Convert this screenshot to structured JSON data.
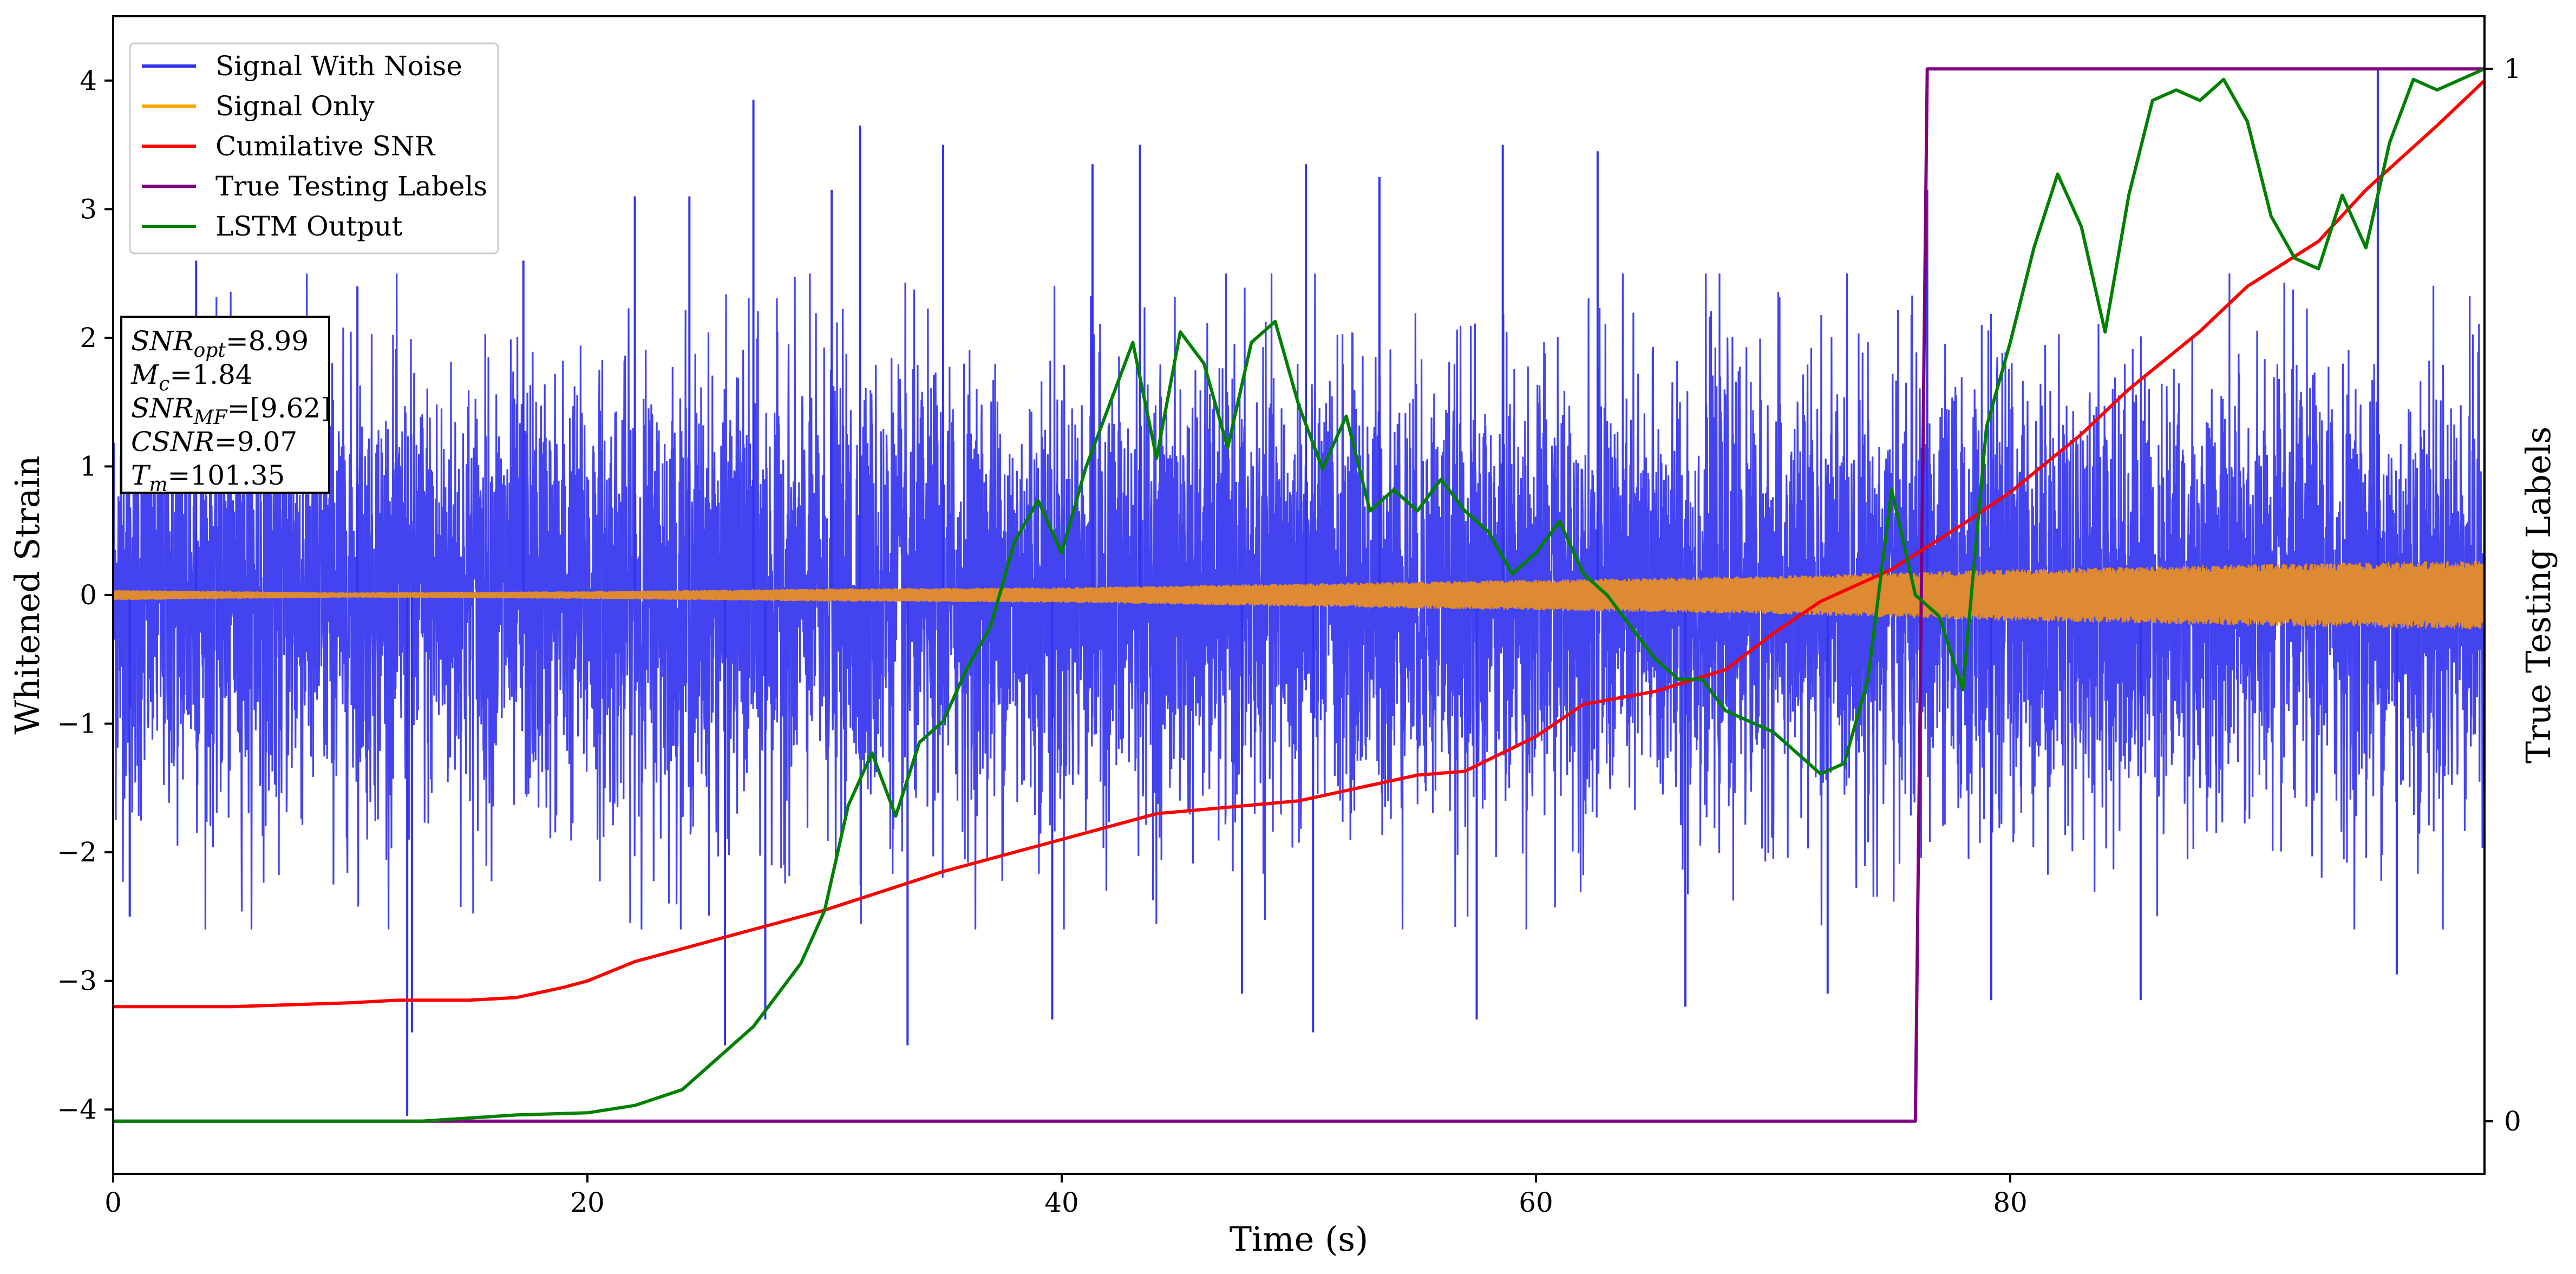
{
  "chart_data": {
    "type": "line",
    "xlabel": "Time (s)",
    "ylabel": "Whitened Strain",
    "y2label": "True Testing Labels",
    "xlim": [
      0,
      100
    ],
    "ylim": [
      -4.5,
      4.5
    ],
    "y2lim": [
      -0.05,
      1.05
    ],
    "xticks": [
      "0",
      "20",
      "40",
      "60",
      "80"
    ],
    "yticks": [
      "−4",
      "−3",
      "−2",
      "−1",
      "0",
      "1",
      "2",
      "3",
      "4"
    ],
    "y2ticks": [
      "0",
      "1"
    ],
    "grid": false,
    "legend_position": "upper-left",
    "series": [
      {
        "name": "Signal With Noise",
        "color": "#3333ee",
        "description_amplitude": "noise band roughly -2 to +2.3 with spikes to about ±4",
        "spikes": [
          [
            0.7,
            -2.5
          ],
          [
            3.5,
            2.6
          ],
          [
            10.3,
            2.4
          ],
          [
            12.4,
            -4.05
          ],
          [
            12.6,
            -3.4
          ],
          [
            17.3,
            2.6
          ],
          [
            22,
            3.1
          ],
          [
            24.3,
            3.1
          ],
          [
            27,
            3.85
          ],
          [
            30.3,
            3.15
          ],
          [
            31.5,
            3.65
          ],
          [
            35,
            3.5
          ],
          [
            41.3,
            3.35
          ],
          [
            43.3,
            3.5
          ],
          [
            50.3,
            3.35
          ],
          [
            53.4,
            3.25
          ],
          [
            58.6,
            3.5
          ],
          [
            62.6,
            3.45
          ],
          [
            76.5,
            3.15
          ],
          [
            95.5,
            4.1
          ],
          [
            25.8,
            -3.5
          ],
          [
            27.5,
            -3.3
          ],
          [
            33.5,
            -3.5
          ],
          [
            39.6,
            -3.3
          ],
          [
            47.6,
            -3.1
          ],
          [
            50.6,
            -3.4
          ],
          [
            57.5,
            -3.3
          ],
          [
            66.3,
            -3.2
          ],
          [
            72.3,
            -3.1
          ],
          [
            79.2,
            -3.15
          ],
          [
            85.5,
            -3.15
          ],
          [
            96.3,
            -2.95
          ]
        ]
      },
      {
        "name": "Signal Only",
        "color": "#ffa500",
        "envelope": [
          [
            0,
            0.04
          ],
          [
            10,
            0.02
          ],
          [
            20,
            0.03
          ],
          [
            30,
            0.05
          ],
          [
            40,
            0.06
          ],
          [
            50,
            0.09
          ],
          [
            60,
            0.12
          ],
          [
            70,
            0.15
          ],
          [
            80,
            0.2
          ],
          [
            90,
            0.24
          ],
          [
            100,
            0.27
          ]
        ]
      },
      {
        "name": "Cumilative SNR",
        "color": "#ff0000",
        "x": [
          0,
          5,
          10,
          12,
          15,
          17,
          19,
          20,
          22,
          25,
          30,
          35,
          40,
          44,
          50,
          53,
          55,
          57,
          60,
          62,
          65,
          68,
          70,
          72,
          75,
          78,
          80,
          83,
          85,
          88,
          90,
          93,
          95,
          98,
          100
        ],
        "y": [
          -3.2,
          -3.2,
          -3.17,
          -3.15,
          -3.15,
          -3.13,
          -3.05,
          -3.0,
          -2.85,
          -2.7,
          -2.45,
          -2.15,
          -1.9,
          -1.7,
          -1.6,
          -1.48,
          -1.4,
          -1.37,
          -1.1,
          -0.85,
          -0.75,
          -0.58,
          -0.3,
          -0.05,
          0.2,
          0.55,
          0.8,
          1.25,
          1.6,
          2.05,
          2.4,
          2.75,
          3.15,
          3.65,
          4.0
        ]
      },
      {
        "name": "True Testing Labels",
        "color": "#800080",
        "axis": "right",
        "x": [
          0,
          76.0,
          76.5,
          100
        ],
        "y": [
          0,
          0,
          1,
          1
        ]
      },
      {
        "name": "LSTM Output",
        "color": "#008000",
        "axis": "right",
        "x": [
          0,
          13,
          17,
          20,
          22,
          24,
          25,
          26,
          27,
          28,
          29,
          30,
          31,
          32,
          33,
          34,
          35,
          36,
          37,
          38,
          39,
          40,
          41,
          42,
          43,
          44,
          45,
          46,
          47,
          48,
          49,
          50,
          51,
          52,
          53,
          54,
          55,
          56,
          57,
          58,
          59,
          60,
          61,
          62,
          63,
          64,
          65,
          66,
          67,
          68,
          69,
          70,
          71,
          72,
          73,
          74,
          75,
          76,
          77,
          78,
          79,
          80,
          81,
          82,
          83,
          84,
          85,
          86,
          87,
          88,
          89,
          90,
          91,
          92,
          93,
          94,
          95,
          96,
          97,
          98,
          99,
          100
        ],
        "y": [
          0,
          0,
          0.006,
          0.008,
          0.015,
          0.03,
          0.05,
          0.07,
          0.09,
          0.12,
          0.15,
          0.2,
          0.3,
          0.35,
          0.29,
          0.36,
          0.38,
          0.43,
          0.47,
          0.55,
          0.59,
          0.54,
          0.62,
          0.68,
          0.74,
          0.63,
          0.75,
          0.72,
          0.64,
          0.74,
          0.76,
          0.68,
          0.62,
          0.67,
          0.58,
          0.6,
          0.58,
          0.61,
          0.58,
          0.56,
          0.52,
          0.54,
          0.57,
          0.52,
          0.5,
          0.47,
          0.44,
          0.42,
          0.42,
          0.39,
          0.38,
          0.37,
          0.35,
          0.33,
          0.34,
          0.42,
          0.6,
          0.5,
          0.48,
          0.41,
          0.66,
          0.74,
          0.83,
          0.9,
          0.85,
          0.75,
          0.88,
          0.97,
          0.98,
          0.97,
          0.99,
          0.95,
          0.86,
          0.82,
          0.81,
          0.88,
          0.83,
          0.93,
          0.99,
          0.98,
          0.99,
          1.0
        ]
      }
    ],
    "annotation": [
      {
        "var": "SNR",
        "sub": "opt",
        "value": "=8.99"
      },
      {
        "var": "M",
        "sub": "c",
        "value": "=1.84"
      },
      {
        "var": "SNR",
        "sub": "MF",
        "value": "=[9.62]"
      },
      {
        "var": "CSNR",
        "sub": "",
        "value": "=9.07"
      },
      {
        "var": "T",
        "sub": "m",
        "value": "=101.35"
      }
    ]
  }
}
